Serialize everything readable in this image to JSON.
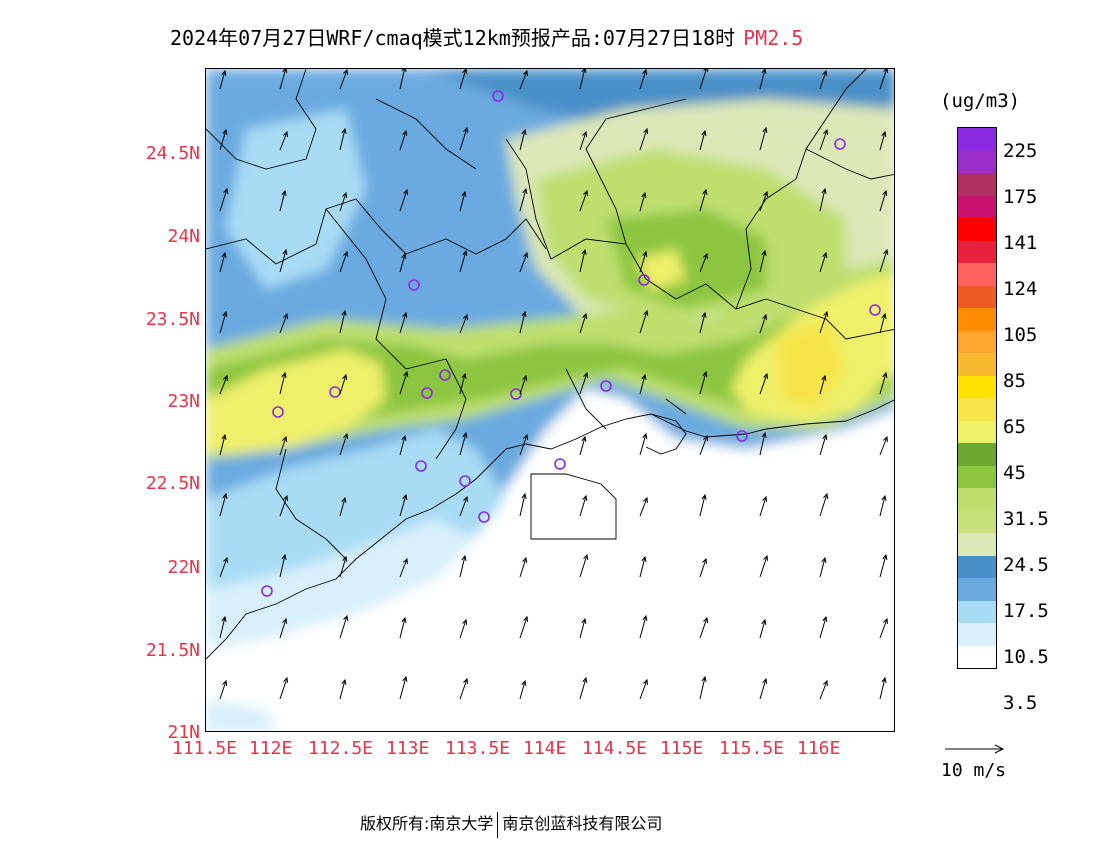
{
  "title": {
    "main": "2024年07月27日WRF/cmaq模式12km预报产品:07月27日18时",
    "variable": "PM2.5"
  },
  "y_axis_labels": [
    "24.5N",
    "24N",
    "23.5N",
    "23N",
    "22.5N",
    "22N",
    "21.5N",
    "21N"
  ],
  "x_axis_labels": [
    "111.5E",
    "112E",
    "112.5E",
    "113E",
    "113.5E",
    "114E",
    "114.5E",
    "115E",
    "115.5E",
    "116E"
  ],
  "colorbar": {
    "unit": "(ug/m3)",
    "labels": [
      "225",
      "175",
      "141",
      "124",
      "105",
      "85",
      "65",
      "45",
      "31.5",
      "24.5",
      "17.5",
      "10.5",
      "3.5"
    ],
    "colors": [
      "#8a2be2",
      "#9b30c8",
      "#b03060",
      "#c8106e",
      "#ff0000",
      "#e8203c",
      "#ff6060",
      "#ee5a24",
      "#ff8c00",
      "#ffa630",
      "#f5b82e",
      "#ffe100",
      "#f7e44a",
      "#eef06a",
      "#6aa832",
      "#8cc63f",
      "#bedf6e",
      "#c8e07a",
      "#dce8b8",
      "#4a90c8",
      "#6aaae0",
      "#a8dcf5",
      "#d8f0fb",
      "#ffffff"
    ]
  },
  "wind_reference": {
    "label": "10 m/s"
  },
  "footer": {
    "left": "版权所有:南京大学",
    "right": "南京创蓝科技有限公司"
  }
}
